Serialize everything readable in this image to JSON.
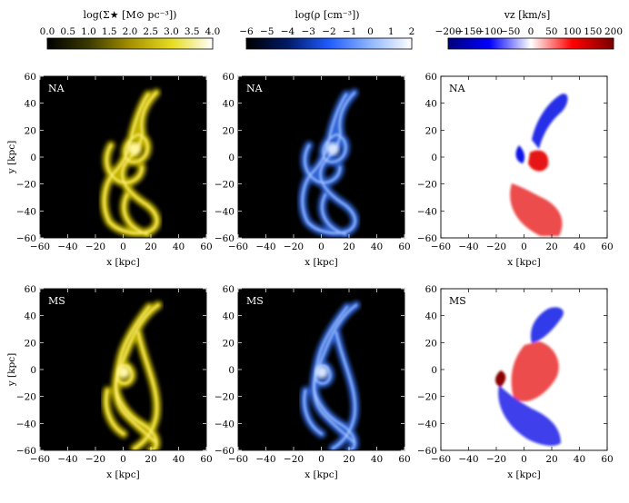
{
  "figure": {
    "colorbars": [
      {
        "title": "log(Σ★ [M⊙ pc⁻³])",
        "ticks": [
          "0.0",
          "0.5",
          "1.0",
          "1.5",
          "2.0",
          "2.5",
          "3.0",
          "3.5",
          "4.0"
        ],
        "colors": [
          "#000000",
          "#3a3a00",
          "#a59000",
          "#e6dc20",
          "#ffffff"
        ]
      },
      {
        "title": "log(ρ [cm⁻³])",
        "ticks": [
          "−6",
          "−5",
          "−4",
          "−3",
          "−2",
          "−1",
          "0",
          "1",
          "2"
        ],
        "colors": [
          "#000000",
          "#001a66",
          "#1f5cff",
          "#8fb6ff",
          "#ffffff"
        ]
      },
      {
        "title": "vz [km/s]",
        "ticks": [
          "−200",
          "−150",
          "−100",
          "−50",
          "0",
          "50",
          "100",
          "150",
          "200"
        ],
        "colors": [
          "#00007a",
          "#0000ff",
          "#ffffff",
          "#ff0000",
          "#7a0000"
        ]
      }
    ],
    "rows": [
      {
        "label": "NA"
      },
      {
        "label": "MS"
      }
    ],
    "x_ticks": [
      "−60",
      "−40",
      "−20",
      "0",
      "20",
      "40",
      "60"
    ],
    "y_ticks": [
      "60",
      "40",
      "20",
      "0",
      "−20",
      "−40",
      "−60"
    ],
    "xlabel": "x [kpc]",
    "ylabel": "y [kpc]",
    "colors": {
      "stellar": "#e6d400",
      "gas": "#3a78ff",
      "vneg": "#0a14e6",
      "vpos": "#e61414"
    }
  }
}
